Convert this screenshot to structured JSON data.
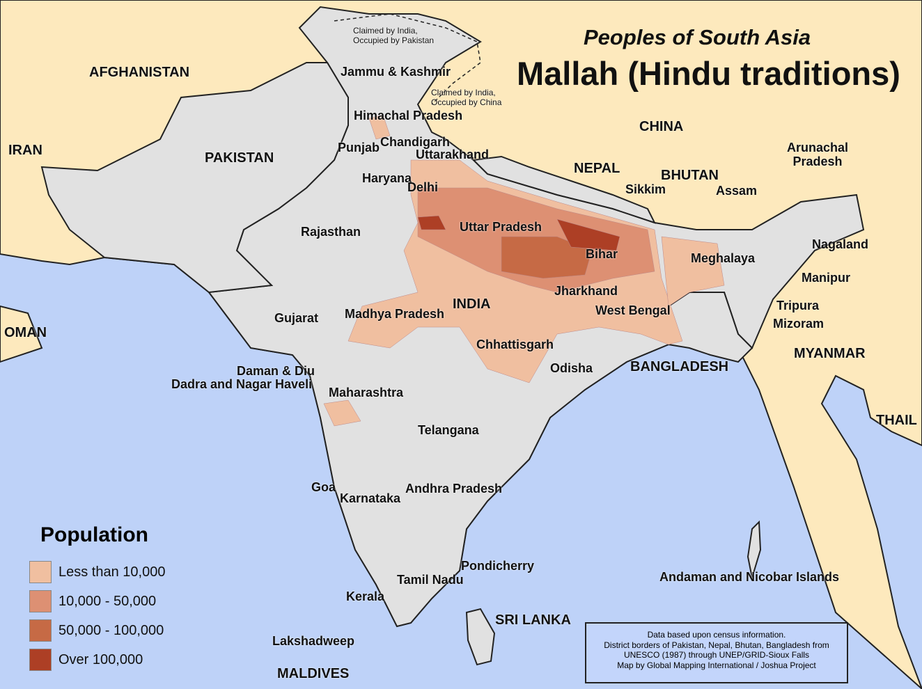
{
  "title": {
    "subtitle": "Peoples of South Asia",
    "main": "Mallah (Hindu traditions)"
  },
  "colors": {
    "sea": "#bed2f8",
    "land": "#fde9bd",
    "region": "#e1e1e1",
    "legend": [
      "#f0bfa0",
      "#dd9073",
      "#c66a45",
      "#ad3f25"
    ]
  },
  "legend": {
    "title": "Population",
    "items": [
      {
        "label": "Less than 10,000",
        "color": "#f0bfa0"
      },
      {
        "label": "10,000 - 50,000",
        "color": "#dd9073"
      },
      {
        "label": "50,000 - 100,000",
        "color": "#c66a45"
      },
      {
        "label": "Over 100,000",
        "color": "#ad3f25"
      }
    ]
  },
  "countries": [
    "AFGHANISTAN",
    "IRAN",
    "PAKISTAN",
    "OMAN",
    "CHINA",
    "NEPAL",
    "BHUTAN",
    "INDIA",
    "BANGLADESH",
    "MYANMAR",
    "THAIL",
    "SRI LANKA",
    "MALDIVES"
  ],
  "regions": [
    "Jammu & Kashmir",
    "Himachal Pradesh",
    "Punjab",
    "Chandigarh",
    "Uttarakhand",
    "Haryana",
    "Delhi",
    "Rajasthan",
    "Uttar Pradesh",
    "Bihar",
    "Sikkim",
    "Arunachal Pradesh",
    "Assam",
    "Meghalaya",
    "Nagaland",
    "Manipur",
    "Tripura",
    "Mizoram",
    "Jharkhand",
    "West Bengal",
    "Gujarat",
    "Madhya Pradesh",
    "Chhattisgarh",
    "Odisha",
    "Daman & Diu",
    "Dadra and Nagar Haveli",
    "Maharashtra",
    "Telangana",
    "Goa",
    "Karnataka",
    "Andhra Pradesh",
    "Pondicherry",
    "Tamil Nadu",
    "Kerala",
    "Lakshadweep",
    "Andaman and Nicobar Islands"
  ],
  "claims": [
    "Claimed by India, Occupied by Pakistan",
    "Claimed by India, Occupied by China"
  ],
  "info": [
    "Data based upon census information.",
    "District borders of Pakistan, Nepal, Bhutan, Bangladesh from",
    "UNESCO (1987) through UNEP/GRID-Sioux Falls",
    "Map by Global Mapping International / Joshua Project"
  ]
}
